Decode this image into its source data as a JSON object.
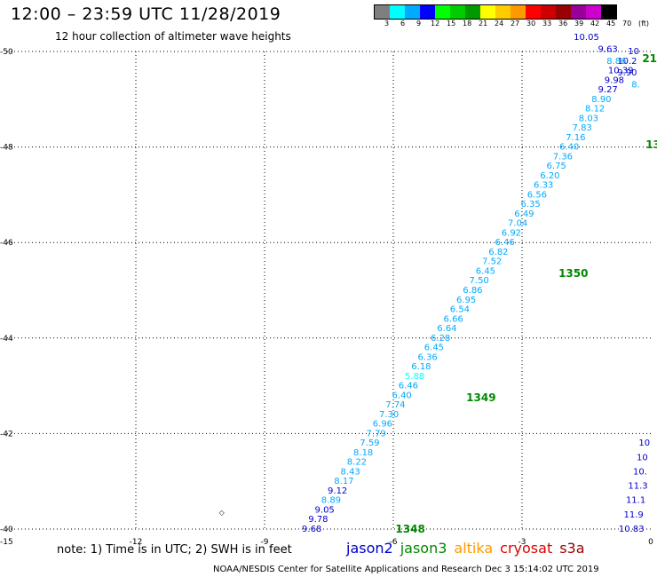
{
  "header": {
    "title": "12:00 – 23:59 UTC 11/28/2019",
    "subtitle": "12 hour collection of altimeter wave heights"
  },
  "scale": {
    "labels": [
      "3",
      "6",
      "9",
      "12",
      "15",
      "18",
      "21",
      "24",
      "27",
      "30",
      "33",
      "36",
      "39",
      "42",
      "45",
      "70",
      "(ft)"
    ],
    "colors": [
      "#7f7f7f",
      "#00ffff",
      "#00aaff",
      "#0000ff",
      "#00ff00",
      "#00cc00",
      "#009900",
      "#ffff00",
      "#ffcc00",
      "#ff9900",
      "#ff0000",
      "#cc0000",
      "#990000",
      "#990099",
      "#cc00cc",
      "#000000"
    ]
  },
  "footer": {
    "note": "note: 1) Time is in UTC; 2) SWH is in feet",
    "credit": "NOAA/NESDIS Center for Satellite Applications and Research     Dec  3 15:14:02 UTC 2019"
  },
  "legend": [
    {
      "name": "jason2",
      "color": "#0000cc"
    },
    {
      "name": "jason3",
      "color": "#008800"
    },
    {
      "name": "altika",
      "color": "#ff9900"
    },
    {
      "name": "cryosat",
      "color": "#dd0000"
    },
    {
      "name": "s3a",
      "color": "#990000"
    }
  ],
  "chart_data": {
    "type": "scatter",
    "title": "12:00 – 23:59 UTC 11/28/2019",
    "subtitle": "12 hour collection of altimeter wave heights",
    "xlim": [
      -15,
      0
    ],
    "ylim": [
      -50,
      -40
    ],
    "xticks": [
      {
        "v": -15,
        "label": "-15"
      },
      {
        "v": -12,
        "label": "-12"
      },
      {
        "v": -9,
        "label": "-9"
      },
      {
        "v": -6,
        "label": "-6"
      },
      {
        "v": -3,
        "label": "-3"
      },
      {
        "v": 0,
        "label": "0"
      }
    ],
    "yticks": [
      {
        "v": -40,
        "label": "-40"
      },
      {
        "v": -42,
        "label": "-42"
      },
      {
        "v": -44,
        "label": "-44"
      },
      {
        "v": -46,
        "label": "-46"
      },
      {
        "v": -48,
        "label": "-48"
      },
      {
        "v": -50,
        "label": "-50"
      }
    ],
    "grid": true,
    "units": "ft",
    "time_labels": [
      {
        "x": -5.95,
        "y": -40.0,
        "text": "1348",
        "color": "#008800"
      },
      {
        "x": -4.3,
        "y": -42.75,
        "text": "1349",
        "color": "#008800"
      },
      {
        "x": -2.15,
        "y": -45.35,
        "text": "1350",
        "color": "#008800"
      },
      {
        "x": -0.12,
        "y": -48.05,
        "text": "13",
        "color": "#008800"
      },
      {
        "x": -0.2,
        "y": -49.85,
        "text": "21",
        "color": "#008800"
      }
    ],
    "land": [
      {
        "x": -10.0,
        "y": -40.35,
        "text": "◇"
      }
    ],
    "series": [
      {
        "name": "jason3",
        "points": [
          {
            "x": -7.9,
            "y": -40.0,
            "v": "9.68",
            "c": "#0000cc"
          },
          {
            "x": -7.75,
            "y": -40.2,
            "v": "9.78",
            "c": "#0000cc"
          },
          {
            "x": -7.6,
            "y": -40.4,
            "v": "9.05",
            "c": "#0000cc"
          },
          {
            "x": -7.45,
            "y": -40.6,
            "v": "8.89",
            "c": "#00aaff"
          },
          {
            "x": -7.3,
            "y": -40.8,
            "v": "9.12",
            "c": "#0000cc"
          },
          {
            "x": -7.15,
            "y": -41.0,
            "v": "8.17",
            "c": "#00aaff"
          },
          {
            "x": -7.0,
            "y": -41.2,
            "v": "8.43",
            "c": "#00aaff"
          },
          {
            "x": -6.85,
            "y": -41.4,
            "v": "8.22",
            "c": "#00aaff"
          },
          {
            "x": -6.7,
            "y": -41.6,
            "v": "8.18",
            "c": "#00aaff"
          },
          {
            "x": -6.55,
            "y": -41.8,
            "v": "7.59",
            "c": "#00aaff"
          },
          {
            "x": -6.4,
            "y": -42.0,
            "v": "7.79",
            "c": "#00aaff"
          },
          {
            "x": -6.25,
            "y": -42.2,
            "v": "6.96",
            "c": "#00aaff"
          },
          {
            "x": -6.1,
            "y": -42.4,
            "v": "7.30",
            "c": "#00aaff"
          },
          {
            "x": -5.95,
            "y": -42.6,
            "v": "7.74",
            "c": "#00aaff"
          },
          {
            "x": -5.8,
            "y": -42.8,
            "v": "6.40",
            "c": "#00aaff"
          },
          {
            "x": -5.65,
            "y": -43.0,
            "v": "6.46",
            "c": "#00aaff"
          },
          {
            "x": -5.5,
            "y": -43.2,
            "v": "5.88",
            "c": "#00ffff"
          },
          {
            "x": -5.35,
            "y": -43.4,
            "v": "6.18",
            "c": "#00aaff"
          },
          {
            "x": -5.2,
            "y": -43.6,
            "v": "6.36",
            "c": "#00aaff"
          },
          {
            "x": -5.05,
            "y": -43.8,
            "v": "6.45",
            "c": "#00aaff"
          },
          {
            "x": -4.9,
            "y": -44.0,
            "v": "6.28",
            "c": "#00aaff"
          },
          {
            "x": -4.75,
            "y": -44.2,
            "v": "6.64",
            "c": "#00aaff"
          },
          {
            "x": -4.6,
            "y": -44.4,
            "v": "6.66",
            "c": "#00aaff"
          },
          {
            "x": -4.45,
            "y": -44.6,
            "v": "6.54",
            "c": "#00aaff"
          },
          {
            "x": -4.3,
            "y": -44.8,
            "v": "6.95",
            "c": "#00aaff"
          },
          {
            "x": -4.15,
            "y": -45.0,
            "v": "6.86",
            "c": "#00aaff"
          },
          {
            "x": -4.0,
            "y": -45.2,
            "v": "7.50",
            "c": "#00aaff"
          },
          {
            "x": -3.85,
            "y": -45.4,
            "v": "6.45",
            "c": "#00aaff"
          },
          {
            "x": -3.7,
            "y": -45.6,
            "v": "7.52",
            "c": "#00aaff"
          },
          {
            "x": -3.55,
            "y": -45.8,
            "v": "6.82",
            "c": "#00aaff"
          },
          {
            "x": -3.4,
            "y": -46.0,
            "v": "6.46",
            "c": "#00aaff"
          },
          {
            "x": -3.25,
            "y": -46.2,
            "v": "6.92",
            "c": "#00aaff"
          },
          {
            "x": -3.1,
            "y": -46.4,
            "v": "7.04",
            "c": "#00aaff"
          },
          {
            "x": -2.95,
            "y": -46.6,
            "v": "6.49",
            "c": "#00aaff"
          },
          {
            "x": -2.8,
            "y": -46.8,
            "v": "6.35",
            "c": "#00aaff"
          },
          {
            "x": -2.65,
            "y": -47.0,
            "v": "6.56",
            "c": "#00aaff"
          },
          {
            "x": -2.5,
            "y": -47.2,
            "v": "6.33",
            "c": "#00aaff"
          },
          {
            "x": -2.35,
            "y": -47.4,
            "v": "6.20",
            "c": "#00aaff"
          },
          {
            "x": -2.2,
            "y": -47.6,
            "v": "6.75",
            "c": "#00aaff"
          },
          {
            "x": -2.05,
            "y": -47.8,
            "v": "7.36",
            "c": "#00aaff"
          },
          {
            "x": -1.9,
            "y": -48.0,
            "v": "6.40",
            "c": "#00aaff"
          },
          {
            "x": -1.75,
            "y": -48.2,
            "v": "7.16",
            "c": "#00aaff"
          },
          {
            "x": -1.6,
            "y": -48.4,
            "v": "7.83",
            "c": "#00aaff"
          },
          {
            "x": -1.45,
            "y": -48.6,
            "v": "8.03",
            "c": "#00aaff"
          },
          {
            "x": -1.3,
            "y": -48.8,
            "v": "8.12",
            "c": "#00aaff"
          },
          {
            "x": -1.15,
            "y": -49.0,
            "v": "8.90",
            "c": "#00aaff"
          },
          {
            "x": -1.0,
            "y": -49.2,
            "v": "9.27",
            "c": "#0000cc"
          },
          {
            "x": -0.85,
            "y": -49.4,
            "v": "9.98",
            "c": "#0000cc"
          },
          {
            "x": -0.7,
            "y": -49.6,
            "v": "10.39",
            "c": "#0000cc"
          },
          {
            "x": -0.55,
            "y": -49.8,
            "v": "10.2",
            "c": "#0000cc"
          },
          {
            "x": -0.4,
            "y": -50.0,
            "v": "10",
            "c": "#0000cc"
          }
        ]
      },
      {
        "name": "jason2",
        "points": [
          {
            "x": -0.45,
            "y": -40.0,
            "v": "10.83",
            "c": "#0000cc"
          },
          {
            "x": -0.4,
            "y": -40.3,
            "v": "11.9",
            "c": "#0000cc"
          },
          {
            "x": -0.35,
            "y": -40.6,
            "v": "11.1",
            "c": "#0000cc"
          },
          {
            "x": -0.3,
            "y": -40.9,
            "v": "11.3",
            "c": "#0000cc"
          },
          {
            "x": -0.25,
            "y": -41.2,
            "v": "10.",
            "c": "#0000cc"
          },
          {
            "x": -0.2,
            "y": -41.5,
            "v": "10",
            "c": "#0000cc"
          },
          {
            "x": -0.15,
            "y": -41.8,
            "v": "10",
            "c": "#0000cc"
          },
          {
            "x": -0.35,
            "y": -49.3,
            "v": "8.",
            "c": "#00aaff"
          },
          {
            "x": -0.55,
            "y": -49.55,
            "v": "9.90",
            "c": "#0000cc"
          },
          {
            "x": -0.8,
            "y": -49.8,
            "v": "8.86",
            "c": "#00aaff"
          },
          {
            "x": -1.0,
            "y": -50.05,
            "v": "9.63",
            "c": "#0000cc"
          },
          {
            "x": -1.5,
            "y": -50.3,
            "v": "10.05",
            "c": "#0000cc"
          }
        ]
      }
    ]
  }
}
